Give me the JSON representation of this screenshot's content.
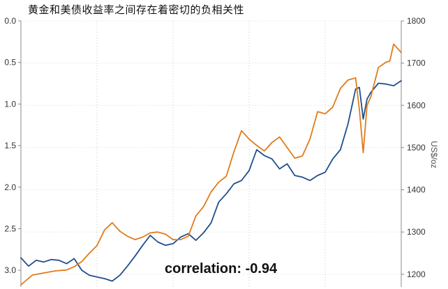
{
  "chart_data": {
    "type": "line",
    "title": "黄金和美债收益率之间存在着密切的负相关性",
    "annotation": "correlation: -0.94",
    "left_axis": {
      "reversed": true,
      "ylim": [
        0.0,
        3.2
      ],
      "ticks": [
        "0.0",
        "0.5",
        "1.0",
        "1.5",
        "2.0",
        "2.5",
        "3.0"
      ],
      "label": ""
    },
    "right_axis": {
      "ylim": [
        1170,
        1800
      ],
      "ticks": [
        "1800",
        "1700",
        "1600",
        "1500",
        "1400",
        "1300",
        "1200"
      ],
      "label": "US$/oz"
    },
    "x_range": [
      0,
      100
    ],
    "grid": true,
    "series": [
      {
        "axis": "left",
        "color": "#1f4e8c",
        "points": [
          [
            0,
            2.85
          ],
          [
            2,
            2.95
          ],
          [
            4,
            2.88
          ],
          [
            6,
            2.9
          ],
          [
            8,
            2.87
          ],
          [
            10,
            2.88
          ],
          [
            12,
            2.92
          ],
          [
            14,
            2.86
          ],
          [
            16,
            3.0
          ],
          [
            18,
            3.06
          ],
          [
            20,
            3.08
          ],
          [
            22,
            3.1
          ],
          [
            24,
            3.13
          ],
          [
            26,
            3.06
          ],
          [
            28,
            2.95
          ],
          [
            30,
            2.83
          ],
          [
            32,
            2.7
          ],
          [
            34,
            2.58
          ],
          [
            36,
            2.66
          ],
          [
            38,
            2.7
          ],
          [
            40,
            2.68
          ],
          [
            42,
            2.6
          ],
          [
            44,
            2.56
          ],
          [
            46,
            2.64
          ],
          [
            48,
            2.55
          ],
          [
            50,
            2.43
          ],
          [
            52,
            2.18
          ],
          [
            54,
            2.08
          ],
          [
            56,
            1.96
          ],
          [
            58,
            1.92
          ],
          [
            60,
            1.8
          ],
          [
            62,
            1.55
          ],
          [
            64,
            1.62
          ],
          [
            66,
            1.66
          ],
          [
            68,
            1.78
          ],
          [
            70,
            1.72
          ],
          [
            72,
            1.86
          ],
          [
            74,
            1.88
          ],
          [
            76,
            1.92
          ],
          [
            78,
            1.86
          ],
          [
            80,
            1.82
          ],
          [
            82,
            1.66
          ],
          [
            84,
            1.55
          ],
          [
            86,
            1.24
          ],
          [
            88,
            0.82
          ],
          [
            89,
            0.8
          ],
          [
            90,
            1.18
          ],
          [
            91,
            0.94
          ],
          [
            92,
            0.86
          ],
          [
            94,
            0.75
          ],
          [
            96,
            0.76
          ],
          [
            98,
            0.78
          ],
          [
            100,
            0.72
          ]
        ]
      },
      {
        "axis": "right",
        "color": "#e07b1a",
        "points": [
          [
            0,
            1175
          ],
          [
            3,
            1198
          ],
          [
            6,
            1203
          ],
          [
            9,
            1208
          ],
          [
            12,
            1210
          ],
          [
            14,
            1218
          ],
          [
            16,
            1230
          ],
          [
            18,
            1250
          ],
          [
            20,
            1268
          ],
          [
            22,
            1305
          ],
          [
            24,
            1322
          ],
          [
            26,
            1302
          ],
          [
            28,
            1290
          ],
          [
            30,
            1282
          ],
          [
            32,
            1288
          ],
          [
            34,
            1298
          ],
          [
            36,
            1300
          ],
          [
            38,
            1295
          ],
          [
            40,
            1282
          ],
          [
            42,
            1282
          ],
          [
            44,
            1290
          ],
          [
            46,
            1338
          ],
          [
            48,
            1360
          ],
          [
            50,
            1395
          ],
          [
            52,
            1418
          ],
          [
            54,
            1432
          ],
          [
            56,
            1490
          ],
          [
            58,
            1540
          ],
          [
            60,
            1520
          ],
          [
            62,
            1505
          ],
          [
            64,
            1492
          ],
          [
            66,
            1512
          ],
          [
            68,
            1525
          ],
          [
            70,
            1500
          ],
          [
            72,
            1475
          ],
          [
            74,
            1480
          ],
          [
            76,
            1520
          ],
          [
            78,
            1585
          ],
          [
            80,
            1580
          ],
          [
            82,
            1596
          ],
          [
            84,
            1640
          ],
          [
            86,
            1660
          ],
          [
            88,
            1665
          ],
          [
            89,
            1590
          ],
          [
            90,
            1488
          ],
          [
            91,
            1600
          ],
          [
            92,
            1620
          ],
          [
            94,
            1690
          ],
          [
            96,
            1702
          ],
          [
            97,
            1705
          ],
          [
            98,
            1745
          ],
          [
            100,
            1725
          ]
        ]
      }
    ]
  }
}
